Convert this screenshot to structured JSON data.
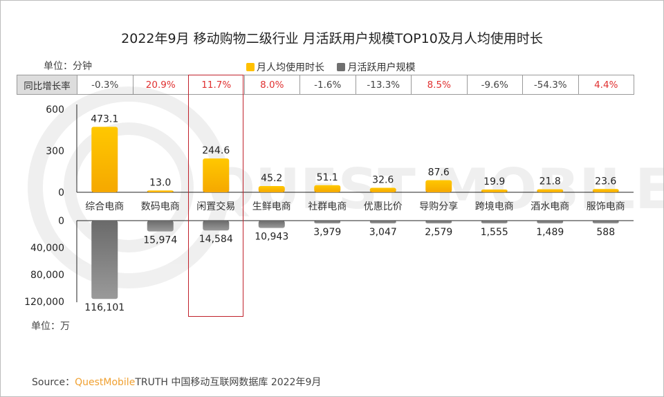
{
  "title": "2022年9月 移动购物二级行业 月活跃用户规模TOP10及月人均使用时长",
  "unit_top": "单位：分钟",
  "unit_bottom": "单位：万",
  "legend": [
    {
      "label": "月人均使用时长",
      "color": "#FFC000"
    },
    {
      "label": "月活跃用户规模",
      "color": "#7f7f7f"
    }
  ],
  "yoy_label": "同比增长率",
  "source_prefix": "Source：",
  "source_brand": "QuestMobile",
  "source_rest": "TRUTH 中国移动互联网数据库 2022年9月",
  "watermark": "QUEST MOBILE",
  "chart_data": {
    "type": "bar",
    "title": "2022年9月 移动购物二级行业 月活跃用户规模TOP10及月人均使用时长",
    "categories": [
      "综合电商",
      "数码电商",
      "闲置交易",
      "生鲜电商",
      "社群电商",
      "优惠比价",
      "导购分享",
      "跨境电商",
      "酒水电商",
      "服饰电商"
    ],
    "highlighted_category": "闲置交易",
    "series": [
      {
        "name": "月人均使用时长",
        "unit": "分钟",
        "values": [
          473.1,
          13.0,
          244.6,
          45.2,
          51.1,
          32.6,
          87.6,
          19.9,
          21.8,
          23.6
        ],
        "labels": [
          "473.1",
          "13.0",
          "244.6",
          "45.2",
          "51.1",
          "32.6",
          "87.6",
          "19.9",
          "21.8",
          "23.6"
        ],
        "ylim": [
          0,
          600
        ],
        "ticks": [
          "600",
          "300",
          "0"
        ],
        "color": "#FFC000"
      },
      {
        "name": "月活跃用户规模",
        "unit": "万",
        "values": [
          116101,
          15974,
          14584,
          10943,
          3979,
          3047,
          2579,
          1555,
          1489,
          588
        ],
        "labels": [
          "116,101",
          "15,974",
          "14,584",
          "10,943",
          "3,979",
          "3,047",
          "2,579",
          "1,555",
          "1,489",
          "588"
        ],
        "ylim": [
          0,
          120000
        ],
        "ticks": [
          "0",
          "40,000",
          "80,000",
          "120,000"
        ],
        "color": "#7f7f7f"
      }
    ],
    "yoy": [
      {
        "text": "-0.3%",
        "color": "#444444"
      },
      {
        "text": "20.9%",
        "color": "#e03030"
      },
      {
        "text": "11.7%",
        "color": "#e03030"
      },
      {
        "text": "8.0%",
        "color": "#e03030"
      },
      {
        "text": "-1.6%",
        "color": "#444444"
      },
      {
        "text": "-13.3%",
        "color": "#444444"
      },
      {
        "text": "8.5%",
        "color": "#e03030"
      },
      {
        "text": "-9.6%",
        "color": "#444444"
      },
      {
        "text": "-54.3%",
        "color": "#444444"
      },
      {
        "text": "4.4%",
        "color": "#e03030"
      }
    ]
  }
}
